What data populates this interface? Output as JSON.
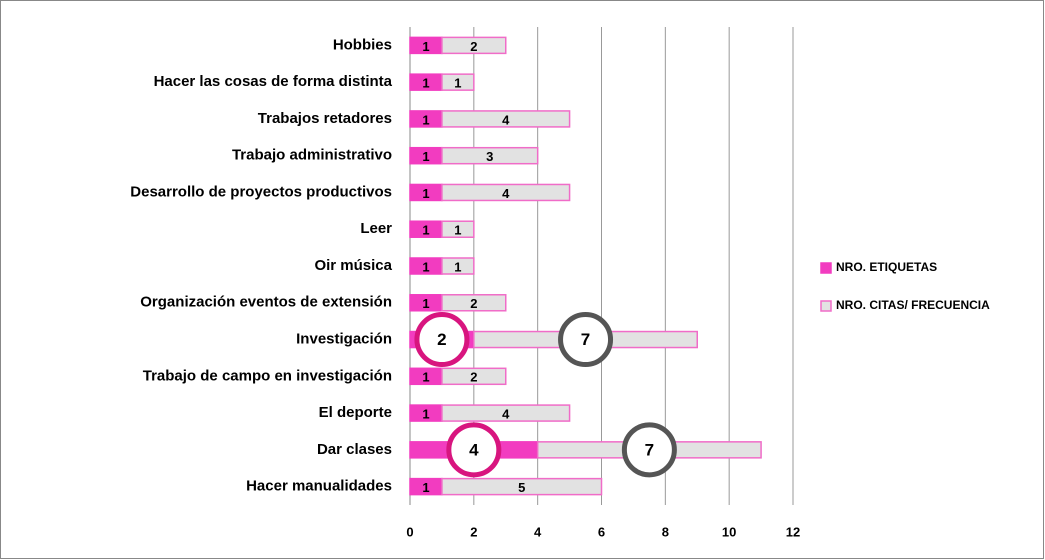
{
  "chart_data": {
    "type": "stacked_barh",
    "categories": [
      "Hobbies",
      "Hacer las cosas de forma distinta",
      "Trabajos retadores",
      "Trabajo administrativo",
      "Desarrollo de proyectos productivos",
      "Leer",
      "Oir música",
      "Organización eventos de extensión",
      "Investigación",
      "Trabajo de campo en investigación",
      "El deporte",
      "Dar clases",
      "Hacer manualidades"
    ],
    "series": [
      {
        "name": "NRO.  ETIQUETAS",
        "color": "#f23cc0",
        "values": [
          1,
          1,
          1,
          1,
          1,
          1,
          1,
          1,
          2,
          1,
          1,
          4,
          1
        ]
      },
      {
        "name": "NRO. CITAS/ FRECUENCIA",
        "color": "#e2e2e2",
        "values": [
          2,
          1,
          4,
          3,
          4,
          1,
          1,
          2,
          7,
          2,
          4,
          7,
          5
        ]
      }
    ],
    "xlim": [
      0,
      12
    ],
    "xticks": [
      0,
      2,
      4,
      6,
      8,
      10,
      12
    ],
    "grid": true,
    "legend": "right",
    "circled_rows": [
      8,
      11
    ]
  }
}
